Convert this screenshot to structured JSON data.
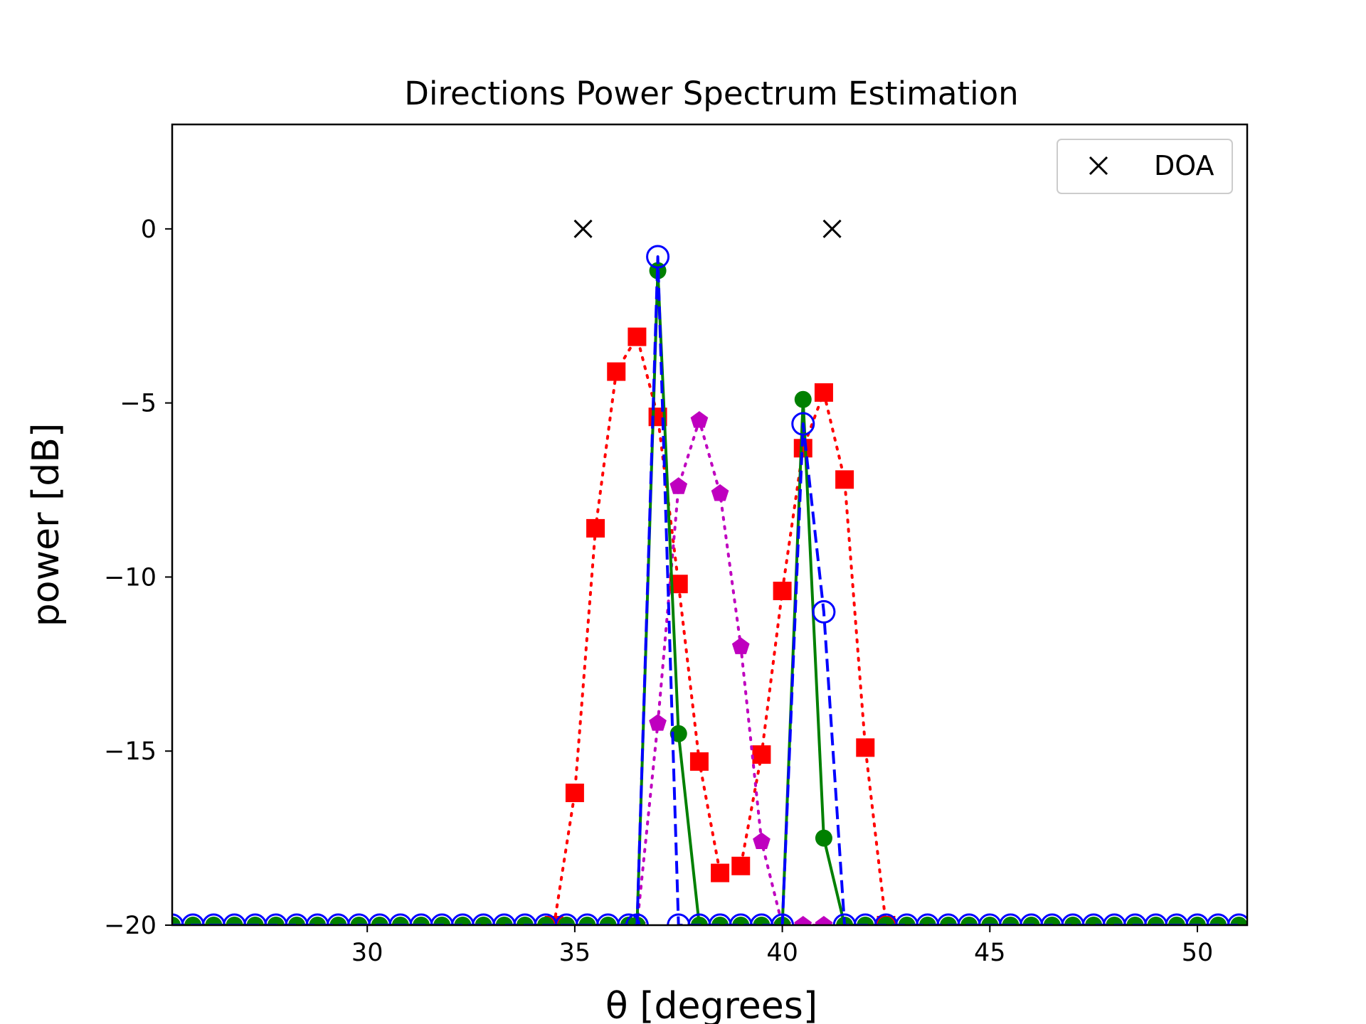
{
  "chart_data": {
    "type": "line",
    "title": "Directions Power Spectrum Estimation",
    "xlabel": "θ [degrees]",
    "ylabel": "power [dB]",
    "xlim": [
      25.3,
      51.2
    ],
    "ylim": [
      -20,
      3
    ],
    "xticks": [
      30,
      35,
      40,
      45,
      50
    ],
    "xtick_labels": [
      "30",
      "35",
      "40",
      "45",
      "50"
    ],
    "yticks": [
      0,
      -5,
      -10,
      -15,
      -20
    ],
    "ytick_labels": [
      "0",
      "−5",
      "−10",
      "−15",
      "−20"
    ],
    "grid": false,
    "legend": {
      "placement": "top-right",
      "entries": [
        "DOA"
      ]
    },
    "series": [
      {
        "name": "DOA",
        "style": "markers-x",
        "color": "#000000",
        "x": [
          35.2,
          41.2
        ],
        "y": [
          0,
          0
        ]
      },
      {
        "style": "dotted-square",
        "color": "#ff0000",
        "x": [
          34.5,
          35.0,
          35.5,
          36.0,
          36.5,
          37.0,
          37.5,
          38.0,
          38.5,
          39.0,
          39.5,
          40.0,
          40.5,
          41.0,
          41.5,
          42.0,
          42.5
        ],
        "y": [
          -20,
          -16.2,
          -8.6,
          -4.1,
          -3.1,
          -5.4,
          -10.2,
          -15.3,
          -18.5,
          -18.3,
          -15.1,
          -10.4,
          -6.3,
          -4.7,
          -7.2,
          -14.9,
          -20
        ]
      },
      {
        "style": "dotted-pentagon",
        "color": "#bf00bf",
        "x": [
          36.5,
          37.0,
          37.5,
          38.0,
          38.5,
          39.0,
          39.5,
          40.0,
          40.5,
          41.0
        ],
        "y": [
          -20,
          -14.2,
          -7.4,
          -5.5,
          -7.6,
          -12.0,
          -17.6,
          -20,
          -20,
          -20
        ]
      },
      {
        "style": "solid-circle",
        "color": "#008000",
        "x": [
          25.3,
          25.8,
          26.3,
          26.8,
          27.3,
          27.8,
          28.3,
          28.8,
          29.3,
          29.8,
          30.3,
          30.8,
          31.3,
          31.8,
          32.3,
          32.8,
          33.3,
          33.8,
          34.3,
          34.8,
          35.3,
          35.8,
          36.3,
          36.5,
          37.0,
          37.5,
          38.0,
          38.5,
          39.0,
          39.5,
          40.0,
          40.5,
          41.0,
          41.5,
          42.0,
          42.5,
          43.0,
          43.5,
          44.0,
          44.5,
          45.0,
          45.5,
          46.0,
          46.5,
          47.0,
          47.5,
          48.0,
          48.5,
          49.0,
          49.5,
          50.0,
          50.5,
          51.0
        ],
        "y": [
          -20,
          -20,
          -20,
          -20,
          -20,
          -20,
          -20,
          -20,
          -20,
          -20,
          -20,
          -20,
          -20,
          -20,
          -20,
          -20,
          -20,
          -20,
          -20,
          -20,
          -20,
          -20,
          -20,
          -20,
          -1.2,
          -14.5,
          -20,
          -20,
          -20,
          -20,
          -20,
          -4.9,
          -17.5,
          -20,
          -20,
          -20,
          -20,
          -20,
          -20,
          -20,
          -20,
          -20,
          -20,
          -20,
          -20,
          -20,
          -20,
          -20,
          -20,
          -20,
          -20,
          -20,
          -20
        ]
      },
      {
        "style": "dashed-open-circle",
        "color": "#0000ff",
        "x": [
          25.3,
          25.8,
          26.3,
          26.8,
          27.3,
          27.8,
          28.3,
          28.8,
          29.3,
          29.8,
          30.3,
          30.8,
          31.3,
          31.8,
          32.3,
          32.8,
          33.3,
          33.8,
          34.3,
          34.8,
          35.3,
          35.8,
          36.3,
          36.5,
          37.0,
          37.5,
          38.0,
          38.5,
          39.0,
          39.5,
          40.0,
          40.5,
          41.0,
          41.5,
          42.0,
          42.5,
          43.0,
          43.5,
          44.0,
          44.5,
          45.0,
          45.5,
          46.0,
          46.5,
          47.0,
          47.5,
          48.0,
          48.5,
          49.0,
          49.5,
          50.0,
          50.5,
          51.0
        ],
        "y": [
          -20,
          -20,
          -20,
          -20,
          -20,
          -20,
          -20,
          -20,
          -20,
          -20,
          -20,
          -20,
          -20,
          -20,
          -20,
          -20,
          -20,
          -20,
          -20,
          -20,
          -20,
          -20,
          -20,
          -20,
          -0.8,
          -20,
          -20,
          -20,
          -20,
          -20,
          -20,
          -5.6,
          -11.0,
          -20,
          -20,
          -20,
          -20,
          -20,
          -20,
          -20,
          -20,
          -20,
          -20,
          -20,
          -20,
          -20,
          -20,
          -20,
          -20,
          -20,
          -20,
          -20,
          -20
        ]
      }
    ]
  }
}
